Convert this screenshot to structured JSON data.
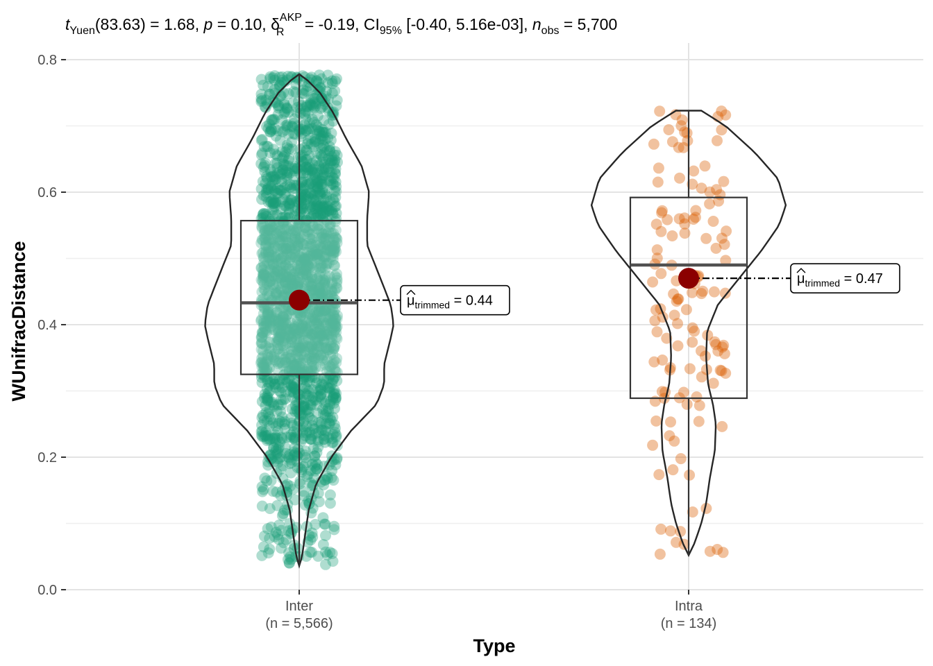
{
  "chart_data": {
    "type": "violin-box-jitter",
    "subtitle": {
      "stat_name": "t",
      "stat_sub": "Yuen",
      "df_part": "(83.63) = 1.68, ",
      "p_name": "p",
      "p_part": " = 0.10, ",
      "effect_name": "δ",
      "effect_sup": "AKP",
      "effect_sub": "R",
      "effect_part": " = -0.19, CI",
      "ci_sub": "95%",
      "ci_part": " [-0.40, 5.16e-03], ",
      "n_name": "n",
      "n_sub": "obs",
      "n_part": " = 5,700"
    },
    "xlabel": "Type",
    "ylabel": "WUnifracDistance",
    "ylim": [
      0,
      0.8
    ],
    "yticks": [
      0.0,
      0.2,
      0.4,
      0.6,
      0.8
    ],
    "ytick_labels": [
      "0.0",
      "0.2",
      "0.4",
      "0.6",
      "0.8"
    ],
    "grid": true,
    "groups": [
      {
        "name": "Inter",
        "n_label": "(n = 5,566)",
        "color": "#1b9e77",
        "min": 0.036,
        "max": 0.778,
        "q1": 0.325,
        "median": 0.433,
        "q3": 0.557,
        "whisker_low": 0.036,
        "whisker_high": 0.778,
        "trimmed_mean": 0.437,
        "mean_label_sym": "μ",
        "mean_label_sub": "trimmed",
        "mean_label_val": " = 0.44",
        "n_points": 5566
      },
      {
        "name": "Intra",
        "n_label": "(n = 134)",
        "color": "#d95f02",
        "min": 0.052,
        "max": 0.723,
        "q1": 0.289,
        "median": 0.49,
        "q3": 0.592,
        "whisker_low": 0.052,
        "whisker_high": 0.723,
        "trimmed_mean": 0.47,
        "mean_label_sym": "μ",
        "mean_label_sub": "trimmed",
        "mean_label_val": " = 0.47",
        "n_points": 134
      }
    ]
  }
}
